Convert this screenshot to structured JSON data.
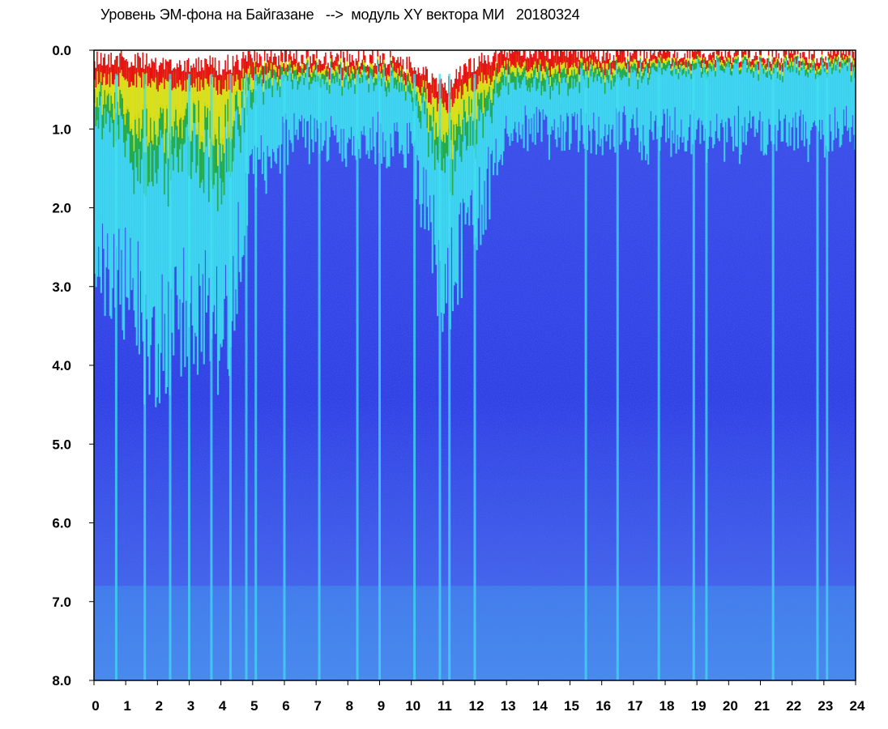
{
  "chart_data": {
    "type": "heatmap",
    "title": "Уровень ЭМ-фона на Байгазане   -->  модуль XY вектора МИ   20180324",
    "xlabel": "",
    "ylabel": "",
    "xlim": [
      0,
      24
    ],
    "ylim": [
      8.0,
      0.0
    ],
    "y_axis_inverted": true,
    "x_ticks": [
      "0",
      "1",
      "2",
      "3",
      "4",
      "5",
      "6",
      "7",
      "8",
      "9",
      "10",
      "11",
      "12",
      "13",
      "14",
      "15",
      "16",
      "17",
      "18",
      "19",
      "20",
      "21",
      "22",
      "23",
      "24"
    ],
    "y_ticks": [
      "0.0",
      "1.0",
      "2.0",
      "3.0",
      "4.0",
      "5.0",
      "6.0",
      "7.0",
      "8.0"
    ],
    "colorscale": [
      "#0000e6",
      "#5a6ef0",
      "#40e0f0",
      "#20a020",
      "#f0e000",
      "#f0a000",
      "#e81010"
    ],
    "grid": false,
    "legend": "none",
    "upper_boundary_by_hour": [
      {
        "x": 0,
        "y": 0.1
      },
      {
        "x": 1,
        "y": 0.1
      },
      {
        "x": 2,
        "y": 0.2
      },
      {
        "x": 3,
        "y": 0.15
      },
      {
        "x": 4,
        "y": 0.2
      },
      {
        "x": 5,
        "y": 0.1
      },
      {
        "x": 6,
        "y": 0.08
      },
      {
        "x": 7,
        "y": 0.1
      },
      {
        "x": 8,
        "y": 0.1
      },
      {
        "x": 9,
        "y": 0.1
      },
      {
        "x": 10,
        "y": 0.2
      },
      {
        "x": 11,
        "y": 0.5
      },
      {
        "x": 12,
        "y": 0.15
      },
      {
        "x": 13,
        "y": 0.0
      },
      {
        "x": 14,
        "y": 0.0
      },
      {
        "x": 15,
        "y": 0.0
      },
      {
        "x": 16,
        "y": 0.05
      },
      {
        "x": 17,
        "y": 0.05
      },
      {
        "x": 18,
        "y": 0.05
      },
      {
        "x": 19,
        "y": 0.05
      },
      {
        "x": 20,
        "y": 0.05
      },
      {
        "x": 21,
        "y": 0.05
      },
      {
        "x": 22,
        "y": 0.05
      },
      {
        "x": 23,
        "y": 0.05
      },
      {
        "x": 24,
        "y": 0.05
      }
    ],
    "yellow_zone_depth_by_hour": [
      {
        "x": 0,
        "y": 0.7
      },
      {
        "x": 1,
        "y": 1.2
      },
      {
        "x": 2,
        "y": 1.6
      },
      {
        "x": 3,
        "y": 1.2
      },
      {
        "x": 4,
        "y": 1.6
      },
      {
        "x": 5,
        "y": 0.5
      },
      {
        "x": 6,
        "y": 0.3
      },
      {
        "x": 7,
        "y": 0.3
      },
      {
        "x": 8,
        "y": 0.3
      },
      {
        "x": 9,
        "y": 0.3
      },
      {
        "x": 10,
        "y": 0.4
      },
      {
        "x": 11,
        "y": 1.2
      },
      {
        "x": 12,
        "y": 0.9
      },
      {
        "x": 13,
        "y": 0.4
      },
      {
        "x": 14,
        "y": 0.45
      },
      {
        "x": 15,
        "y": 0.4
      },
      {
        "x": 16,
        "y": 0.35
      },
      {
        "x": 17,
        "y": 0.3
      },
      {
        "x": 18,
        "y": 0.2
      },
      {
        "x": 19,
        "y": 0.2
      },
      {
        "x": 20,
        "y": 0.2
      },
      {
        "x": 21,
        "y": 0.2
      },
      {
        "x": 22,
        "y": 0.2
      },
      {
        "x": 23,
        "y": 0.2
      },
      {
        "x": 24,
        "y": 0.2
      }
    ],
    "cyan_zone_depth_by_hour": [
      {
        "x": 0,
        "y": 2.5
      },
      {
        "x": 1,
        "y": 3.0
      },
      {
        "x": 2,
        "y": 3.5
      },
      {
        "x": 3,
        "y": 3.0
      },
      {
        "x": 4,
        "y": 3.5
      },
      {
        "x": 5,
        "y": 1.5
      },
      {
        "x": 6,
        "y": 1.0
      },
      {
        "x": 7,
        "y": 1.0
      },
      {
        "x": 8,
        "y": 1.0
      },
      {
        "x": 9,
        "y": 1.0
      },
      {
        "x": 10,
        "y": 1.2
      },
      {
        "x": 11,
        "y": 2.5
      },
      {
        "x": 12,
        "y": 2.0
      },
      {
        "x": 13,
        "y": 1.0
      },
      {
        "x": 14,
        "y": 1.0
      },
      {
        "x": 15,
        "y": 1.0
      },
      {
        "x": 16,
        "y": 1.0
      },
      {
        "x": 17,
        "y": 1.0
      },
      {
        "x": 18,
        "y": 1.0
      },
      {
        "x": 19,
        "y": 1.0
      },
      {
        "x": 20,
        "y": 1.0
      },
      {
        "x": 21,
        "y": 1.0
      },
      {
        "x": 22,
        "y": 1.0
      },
      {
        "x": 23,
        "y": 1.0
      },
      {
        "x": 24,
        "y": 1.0
      }
    ],
    "bright_vertical_streaks_hours": [
      0.7,
      1.6,
      2.4,
      3.0,
      3.7,
      4.3,
      4.8,
      5.1,
      6.0,
      7.1,
      8.3,
      9.0,
      10.1,
      10.9,
      11.2,
      12.0,
      15.5,
      16.5,
      17.8,
      18.9,
      19.3,
      21.4,
      22.8,
      23.1
    ]
  }
}
